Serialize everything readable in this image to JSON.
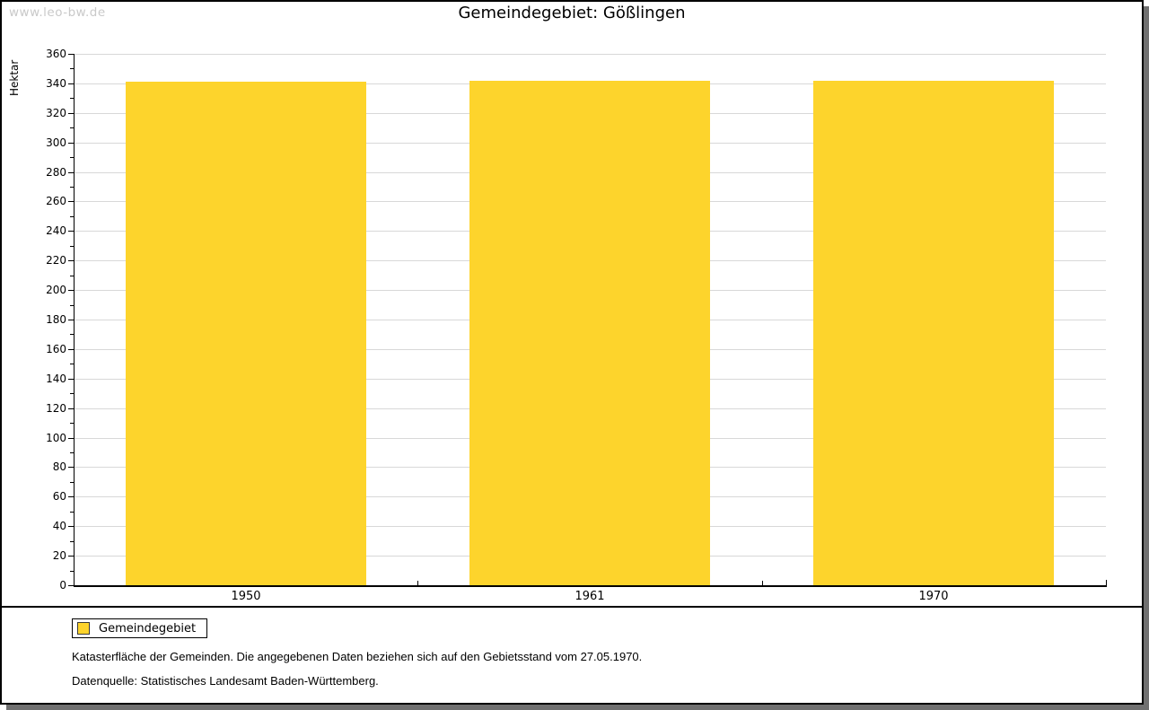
{
  "watermark": "www.leo-bw.de",
  "title": "Gemeindegebiet: Gößlingen",
  "chart_data": {
    "type": "bar",
    "title": "Gemeindegebiet: Gößlingen",
    "categories": [
      "1950",
      "1961",
      "1970"
    ],
    "values": [
      341,
      342,
      342
    ],
    "series_name": "Gemeindegebiet",
    "xlabel": "",
    "ylabel": "Hektar",
    "ylim": [
      0,
      360
    ],
    "ytick_step": 20,
    "yminor_step": 10,
    "grid": true,
    "bar_color": "#FDD42C",
    "gridline_color": "#d8d8d8",
    "legend_position": "bottom-left"
  },
  "legend": {
    "label": "Gemeindegebiet",
    "swatch_color": "#FDD42C"
  },
  "footnotes": [
    "Katasterfläche der Gemeinden. Die angegebenen Daten beziehen sich auf den Gebietsstand vom 27.05.1970.",
    "Datenquelle: Statistisches Landesamt Baden-Württemberg."
  ]
}
